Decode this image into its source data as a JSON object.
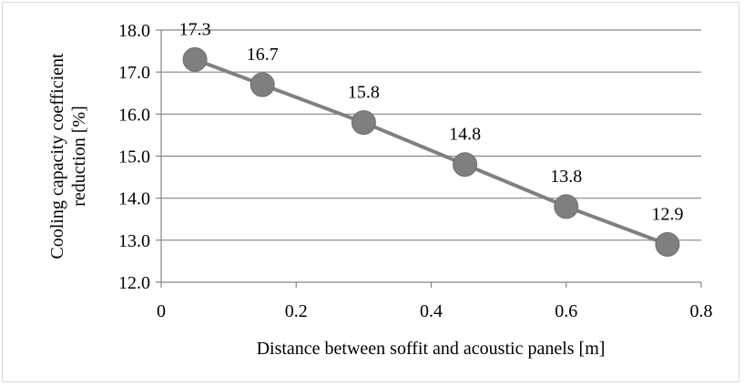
{
  "chart_data": {
    "type": "line",
    "title": "",
    "xlabel": "Distance between soffit and acoustic panels [m]",
    "ylabel_lines": [
      "Cooling capacity coefficient",
      "reduction [%]"
    ],
    "x": [
      0.05,
      0.15,
      0.3,
      0.45,
      0.6,
      0.75
    ],
    "series": [
      {
        "values": [
          17.3,
          16.7,
          15.8,
          14.8,
          13.8,
          12.9
        ],
        "data_labels": [
          "17.3",
          "16.7",
          "15.8",
          "14.8",
          "13.8",
          "12.9"
        ]
      }
    ],
    "xlim": [
      0,
      0.8
    ],
    "ylim": [
      12.0,
      18.0
    ],
    "x_ticks": [
      "0",
      "0.2",
      "0.4",
      "0.6",
      "0.8"
    ],
    "x_tick_values": [
      0,
      0.2,
      0.4,
      0.6,
      0.8
    ],
    "y_ticks": [
      "12.0",
      "13.0",
      "14.0",
      "15.0",
      "16.0",
      "17.0",
      "18.0"
    ],
    "y_tick_values": [
      12,
      13,
      14,
      15,
      16,
      17,
      18
    ],
    "grid": "horizontal",
    "legend": "none",
    "colors": {
      "line": "#808080",
      "marker": "#7f7f7f",
      "grid": "#868686",
      "axis": "#868686"
    }
  }
}
